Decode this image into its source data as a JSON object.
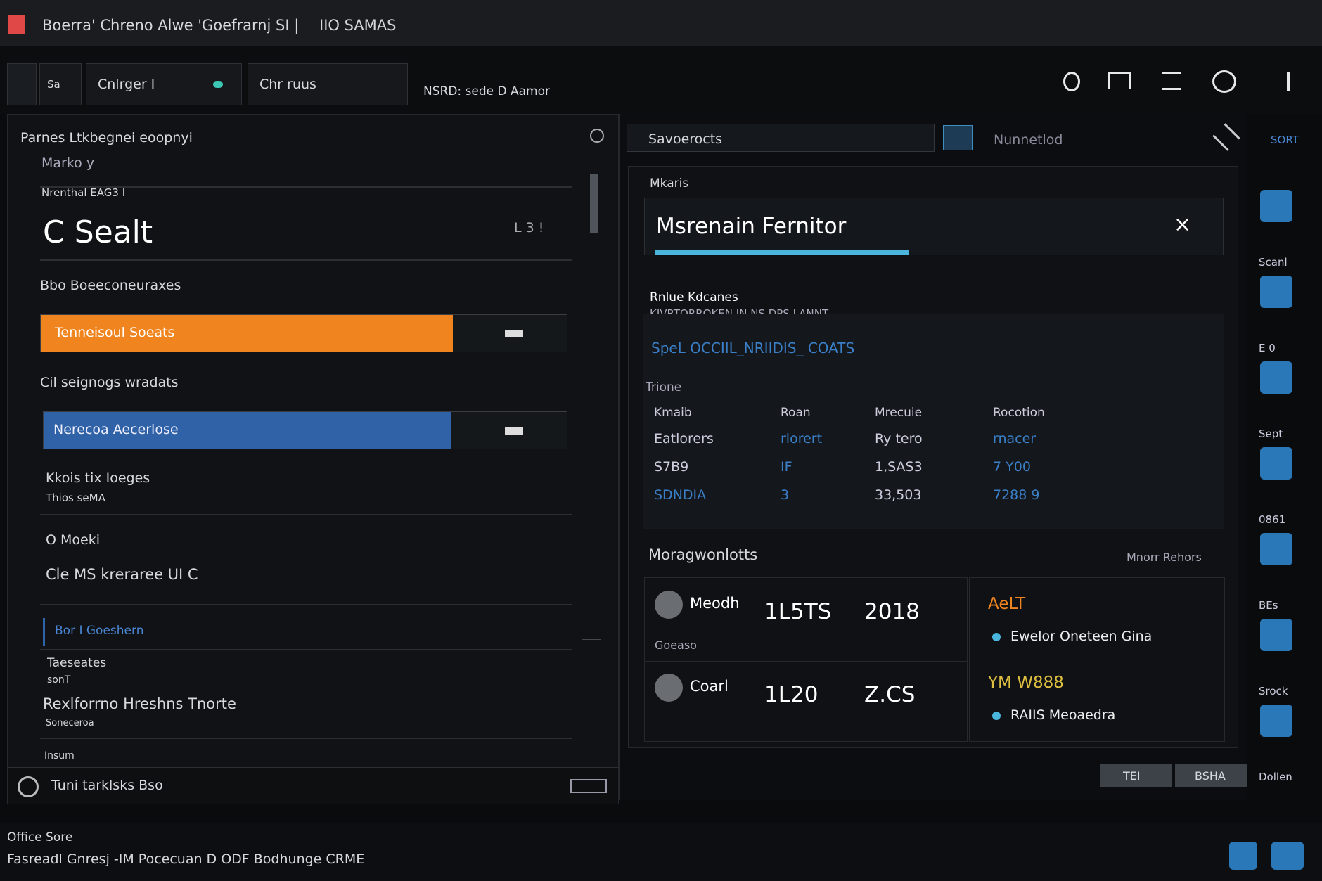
{
  "title_bar": {
    "title": "Boerra' Chreno Alwe 'Goefrarnj SI |",
    "badge": "IIO SAMAS"
  },
  "toolbar": {
    "tabs": [
      "Sa",
      "Cnlrger I",
      "Chr ruus"
    ],
    "status": "NSRD: sede D Aamor"
  },
  "left_panel": {
    "header": "Parnes Ltkbegnei eoopnyi",
    "subheader": "Marko y",
    "field_label": "Nrenthal EAG3 I",
    "big_value": "C Sealt",
    "big_suffix": "L 3 !",
    "section1": "Bbo Boeeconeuraxes",
    "orange_bar": "Tenneisoul Soeats",
    "section2": "Cil seignogs wradats",
    "blue_bar": "Nerecoa Aecerlose",
    "item1": "Kkois tix Ioeges",
    "item1_sub": "Thios seMA",
    "item2": "O Moeki",
    "item3": "Cle MS kreraree UI C",
    "link": "Bor I Goeshern",
    "item4": "Taeseates",
    "item4_sub": "sonT",
    "item5": "Rexlforrno Hreshns Tnorte",
    "item5_sub": "Soneceroa",
    "item6": "Insum",
    "footer": "Tuni tarklsks Bso"
  },
  "right_panel": {
    "search": "Savoerocts",
    "filter": "Nunnetlod",
    "sort": "SORT",
    "card_label": "Mkaris",
    "input": "Msrenain Fernitor",
    "value_title": "Rnlue Kdcanes",
    "value_caps": "KIVRTORROKEN IN NS DPS LANNT",
    "value_link": "SpeL OCCIIL_NRIIDIS_ COATS",
    "table_label": "Trione",
    "table": {
      "headers": [
        "Kmaib",
        "Roan",
        "Mrecuie",
        "Rocotion"
      ],
      "rows": [
        [
          "Eatlorers",
          "rlorert",
          "Ry tero",
          "rnacer"
        ],
        [
          "S7B9",
          "IF",
          "1,SAS3",
          "7 Y00"
        ],
        [
          "SDNDIA",
          "3",
          "33,503",
          "7288 9"
        ]
      ]
    },
    "monitor_title": "Moragwonlotts",
    "monitor_link": "Mnorr Rehors",
    "metrics": [
      {
        "name": "Meodh",
        "sub": "Goeaso",
        "a": "1L5TS",
        "b": "2018"
      },
      {
        "name": "Coarl",
        "a": "1L20",
        "b": "Z.CS"
      }
    ],
    "alerts": [
      {
        "title": "AeLT",
        "text": "Ewelor Oneteen Gina"
      },
      {
        "title": "YM W888",
        "text": "RAIIS Meoaedra"
      }
    ],
    "buttons": [
      "TEI",
      "BSHA"
    ]
  },
  "side_bar": {
    "labels": [
      "Scanl",
      "E 0",
      "Sept",
      "0861",
      "BEs",
      "Srock",
      "Dollen"
    ]
  },
  "status_bar": {
    "title": "Office Sore",
    "text": "Fasreadl Gnresj -IM Pocecuan D ODF Bodhunge CRME"
  }
}
